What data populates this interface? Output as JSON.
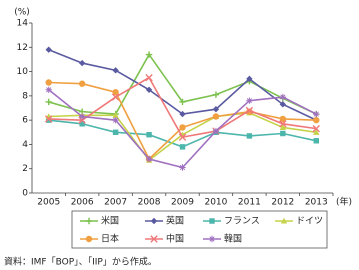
{
  "chart_data": {
    "type": "line",
    "y_unit": "(%)",
    "x_unit": "(年)",
    "source": "資料：IMF「BOP」、「IIP」から作成。",
    "categories": [
      "2005",
      "2006",
      "2007",
      "2008",
      "2009",
      "2010",
      "2011",
      "2012",
      "2013"
    ],
    "ylim": [
      0,
      14
    ],
    "yticks": [
      0,
      2,
      4,
      6,
      8,
      10,
      12,
      14
    ],
    "series": [
      {
        "name": "米国",
        "color": "#7cc24e",
        "marker": "plus",
        "values": [
          7.5,
          6.7,
          6.5,
          11.4,
          7.5,
          8.1,
          9.2,
          7.8,
          6.5
        ]
      },
      {
        "name": "英国",
        "color": "#5a5aa0",
        "marker": "diamond",
        "values": [
          11.8,
          10.7,
          10.1,
          8.5,
          6.5,
          6.9,
          9.4,
          7.3,
          6.0
        ]
      },
      {
        "name": "フランス",
        "color": "#4db6ac",
        "marker": "square",
        "values": [
          6.0,
          5.7,
          5.0,
          4.8,
          3.8,
          5.0,
          4.7,
          4.9,
          4.3
        ]
      },
      {
        "name": "ドイツ",
        "color": "#c6d34a",
        "marker": "triangle",
        "values": [
          6.3,
          6.4,
          6.4,
          2.7,
          4.8,
          6.3,
          6.6,
          5.4,
          5.0
        ]
      },
      {
        "name": "日本",
        "color": "#f0a040",
        "marker": "circle",
        "values": [
          9.1,
          9.0,
          8.3,
          2.8,
          5.4,
          6.3,
          6.7,
          6.1,
          6.0
        ]
      },
      {
        "name": "中国",
        "color": "#f07878",
        "marker": "x",
        "values": [
          6.1,
          6.0,
          7.9,
          9.5,
          4.6,
          5.1,
          6.8,
          5.7,
          5.3
        ]
      },
      {
        "name": "韓国",
        "color": "#a070c0",
        "marker": "star",
        "values": [
          8.5,
          6.3,
          6.0,
          2.8,
          2.1,
          5.1,
          7.6,
          7.9,
          6.5
        ]
      }
    ]
  }
}
